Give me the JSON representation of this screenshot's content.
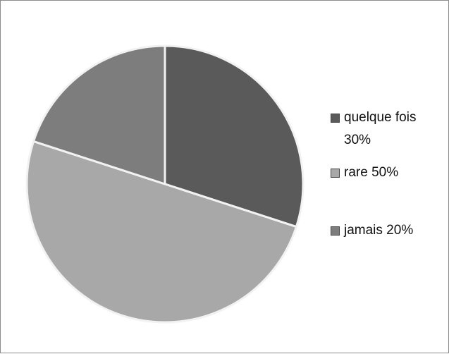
{
  "chart_data": {
    "type": "pie",
    "categories": [
      "quelque fois 30%",
      "rare 50%",
      "jamais 20%"
    ],
    "values": [
      30,
      50,
      20
    ],
    "colors": [
      "#5a5a5a",
      "#a8a8a8",
      "#7d7d7d"
    ],
    "legend": "right"
  }
}
